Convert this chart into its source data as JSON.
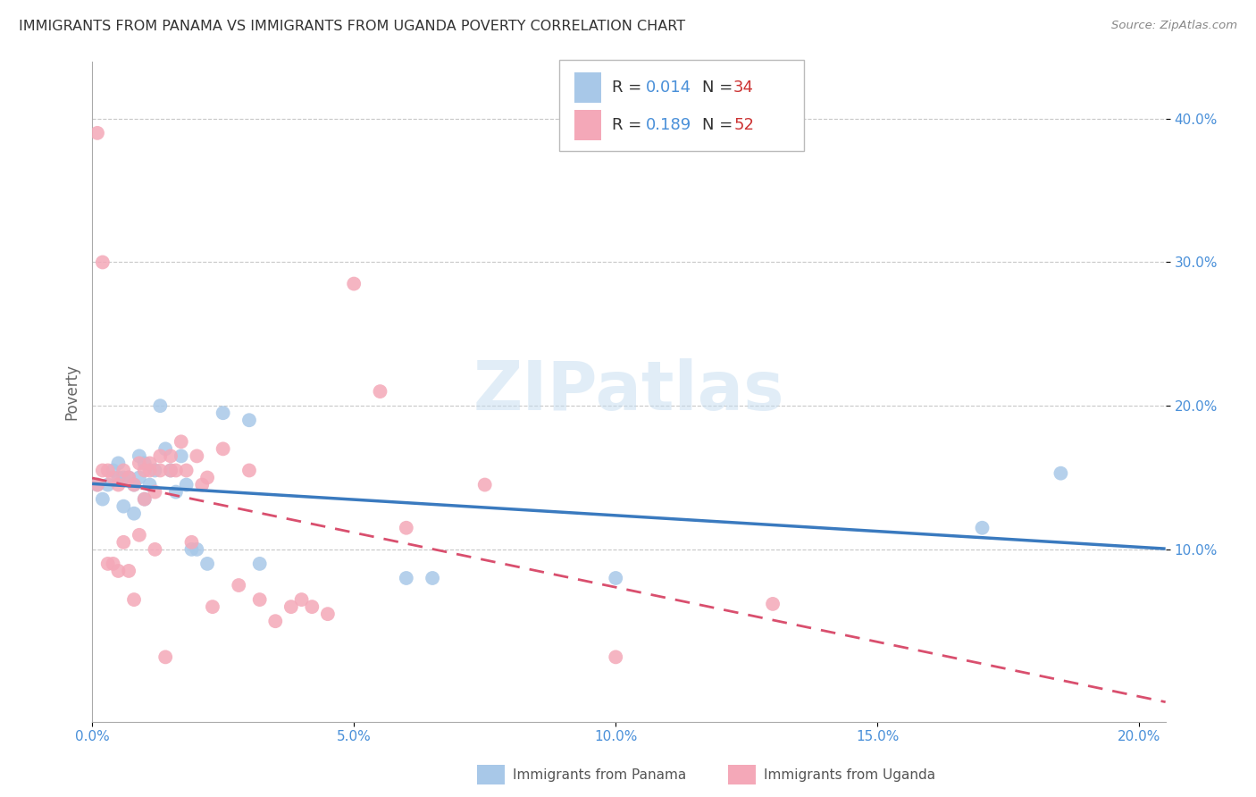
{
  "title": "IMMIGRANTS FROM PANAMA VS IMMIGRANTS FROM UGANDA POVERTY CORRELATION CHART",
  "source": "Source: ZipAtlas.com",
  "ylabel_label": "Poverty",
  "xlim": [
    0.0,
    0.205
  ],
  "ylim": [
    -0.02,
    0.44
  ],
  "xticks": [
    0.0,
    0.05,
    0.1,
    0.15,
    0.2
  ],
  "xtick_labels": [
    "0.0%",
    "5.0%",
    "10.0%",
    "15.0%",
    "20.0%"
  ],
  "yticks": [
    0.1,
    0.2,
    0.3,
    0.4
  ],
  "ytick_labels": [
    "10.0%",
    "20.0%",
    "30.0%",
    "40.0%"
  ],
  "grid_color": "#c8c8c8",
  "background_color": "#ffffff",
  "panama_color": "#a8c8e8",
  "uganda_color": "#f4a8b8",
  "panama_line_color": "#3a7abf",
  "uganda_line_color": "#d94f6e",
  "legend_R_panama": "0.014",
  "legend_N_panama": "34",
  "legend_R_uganda": "0.189",
  "legend_N_uganda": "52",
  "watermark": "ZIPatlas",
  "panama_scatter_x": [
    0.001,
    0.002,
    0.003,
    0.004,
    0.005,
    0.005,
    0.006,
    0.006,
    0.007,
    0.008,
    0.008,
    0.009,
    0.009,
    0.01,
    0.01,
    0.011,
    0.012,
    0.013,
    0.014,
    0.015,
    0.016,
    0.017,
    0.018,
    0.019,
    0.02,
    0.022,
    0.025,
    0.03,
    0.032,
    0.06,
    0.065,
    0.1,
    0.17,
    0.185
  ],
  "panama_scatter_y": [
    0.145,
    0.135,
    0.145,
    0.155,
    0.15,
    0.16,
    0.13,
    0.15,
    0.15,
    0.125,
    0.145,
    0.15,
    0.165,
    0.16,
    0.135,
    0.145,
    0.155,
    0.2,
    0.17,
    0.155,
    0.14,
    0.165,
    0.145,
    0.1,
    0.1,
    0.09,
    0.195,
    0.19,
    0.09,
    0.08,
    0.08,
    0.08,
    0.115,
    0.153
  ],
  "uganda_scatter_x": [
    0.001,
    0.001,
    0.002,
    0.002,
    0.003,
    0.003,
    0.004,
    0.004,
    0.005,
    0.005,
    0.006,
    0.006,
    0.007,
    0.007,
    0.008,
    0.008,
    0.009,
    0.009,
    0.01,
    0.01,
    0.011,
    0.011,
    0.012,
    0.012,
    0.013,
    0.013,
    0.014,
    0.015,
    0.015,
    0.016,
    0.017,
    0.018,
    0.019,
    0.02,
    0.021,
    0.022,
    0.023,
    0.025,
    0.028,
    0.03,
    0.032,
    0.035,
    0.038,
    0.04,
    0.042,
    0.045,
    0.05,
    0.055,
    0.06,
    0.075,
    0.1,
    0.13
  ],
  "uganda_scatter_y": [
    0.39,
    0.145,
    0.3,
    0.155,
    0.155,
    0.09,
    0.15,
    0.09,
    0.145,
    0.085,
    0.105,
    0.155,
    0.085,
    0.15,
    0.065,
    0.145,
    0.16,
    0.11,
    0.135,
    0.155,
    0.155,
    0.16,
    0.14,
    0.1,
    0.155,
    0.165,
    0.025,
    0.165,
    0.155,
    0.155,
    0.175,
    0.155,
    0.105,
    0.165,
    0.145,
    0.15,
    0.06,
    0.17,
    0.075,
    0.155,
    0.065,
    0.05,
    0.06,
    0.065,
    0.06,
    0.055,
    0.285,
    0.21,
    0.115,
    0.145,
    0.025,
    0.062
  ]
}
